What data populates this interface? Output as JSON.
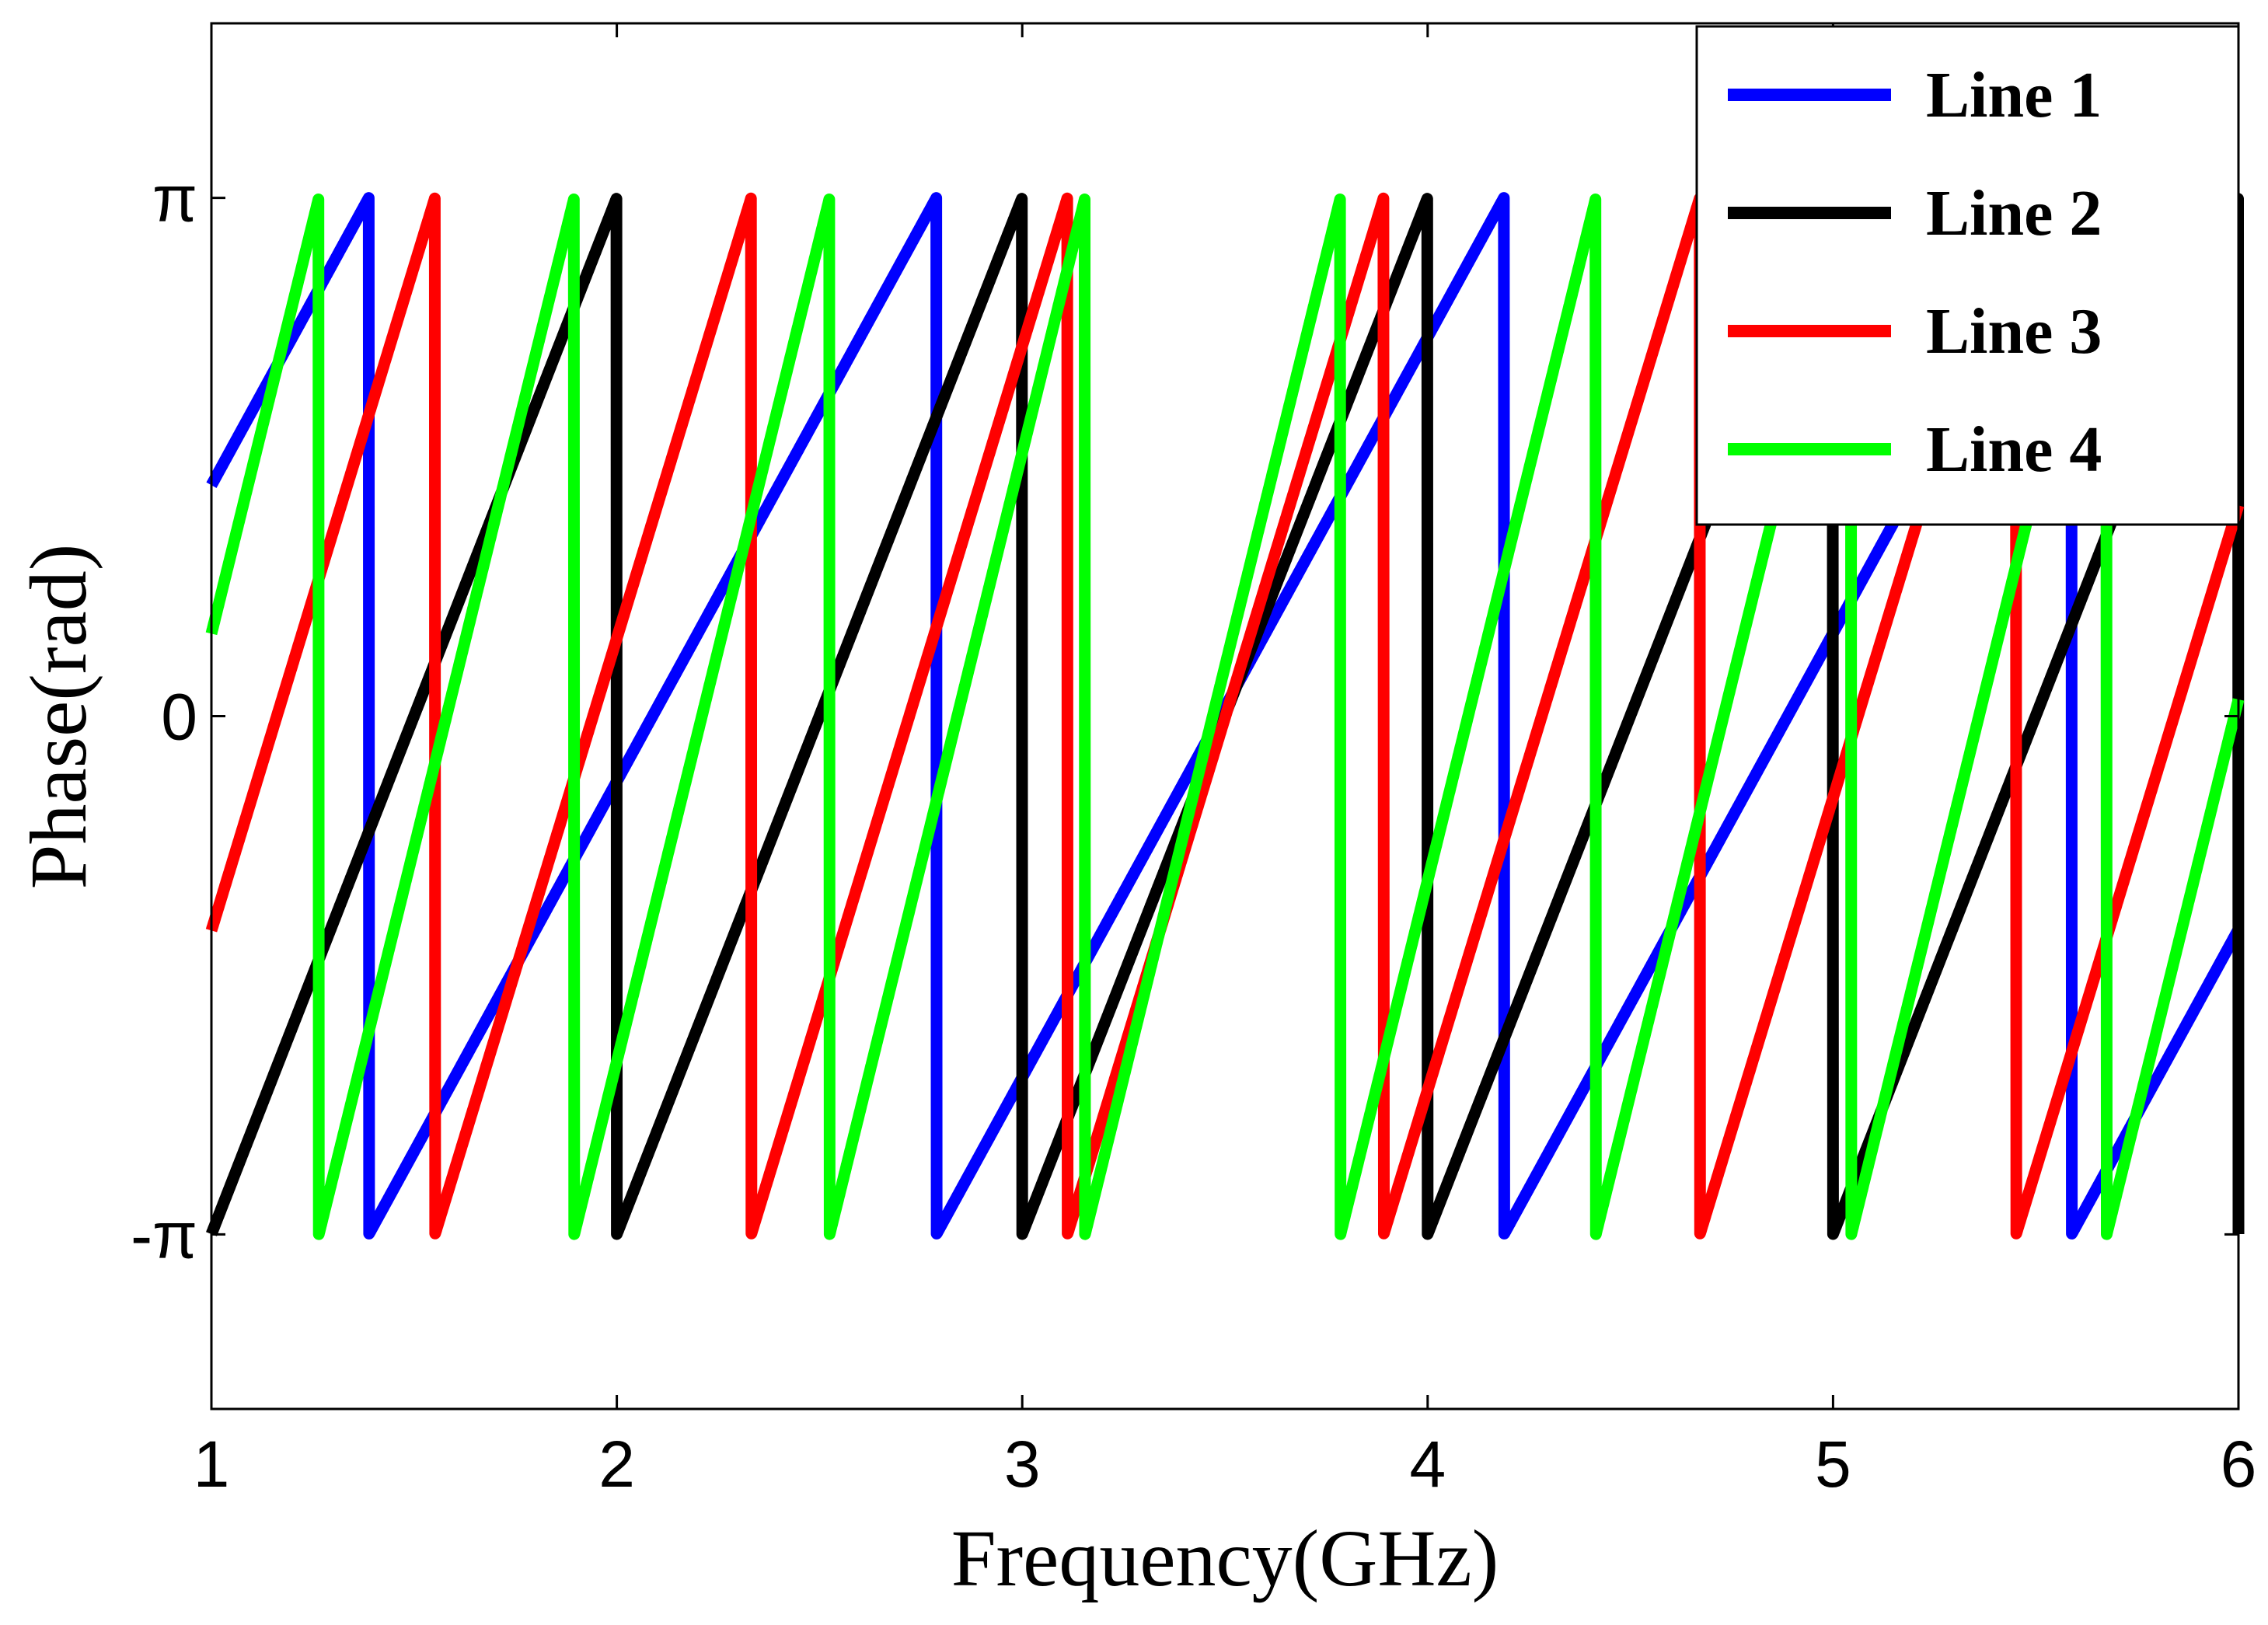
{
  "chart_data": {
    "type": "line",
    "title": "",
    "xlabel": "Frequency(GHz)",
    "ylabel": "Phase(rad)",
    "xlim": [
      1,
      6
    ],
    "ylim": [
      -4.2,
      4.2
    ],
    "xticks": [
      {
        "value": 1,
        "label": "1"
      },
      {
        "value": 2,
        "label": "2"
      },
      {
        "value": 3,
        "label": "3"
      },
      {
        "value": 4,
        "label": "4"
      },
      {
        "value": 5,
        "label": "5"
      },
      {
        "value": 6,
        "label": "6"
      }
    ],
    "yticks": [
      {
        "value": -3.14159,
        "label": "-π"
      },
      {
        "value": 0,
        "label": "0"
      },
      {
        "value": 3.14159,
        "label": "π"
      }
    ],
    "grid": false,
    "legend_position": "top-right",
    "series": [
      {
        "name": "Line 1",
        "color": "#0000ff",
        "phase_at_start": 1.4,
        "wrap_period_ghz": 1.4
      },
      {
        "name": "Line 2",
        "color": "#000000",
        "phase_at_start": -3.14,
        "wrap_period_ghz": 1.0
      },
      {
        "name": "Line 3",
        "color": "#ff0000",
        "phase_at_start": -1.3,
        "wrap_period_ghz": 0.78
      },
      {
        "name": "Line 4",
        "color": "#00ff00",
        "phase_at_start": 0.5,
        "wrap_period_ghz": 0.63
      }
    ]
  }
}
